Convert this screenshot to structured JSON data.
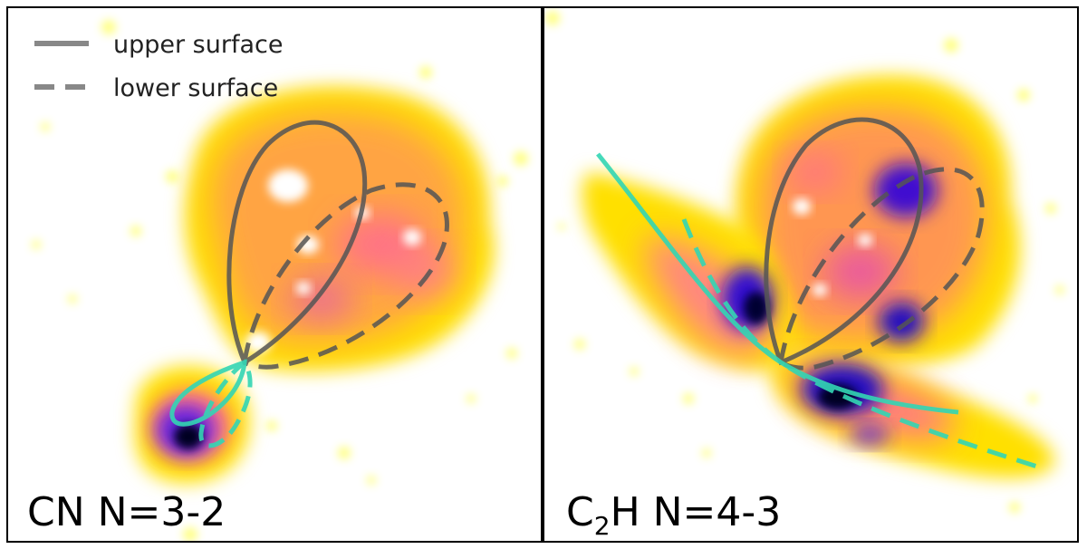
{
  "figure": {
    "legend": {
      "entries": [
        {
          "label": "upper surface",
          "style": "solid"
        },
        {
          "label": "lower surface",
          "style": "dashed"
        }
      ]
    },
    "panels": [
      {
        "id": "cn",
        "label_main": "CN N=3-2"
      },
      {
        "id": "c2h",
        "label_prefix": "C",
        "label_subscript": "2",
        "label_suffix": "H N=4-3"
      }
    ],
    "colors": {
      "model_lines": "#555555",
      "cyan_lines": "#33d6b4",
      "colormap": [
        "#ffffff",
        "#ffff40",
        "#ffd000",
        "#ff8060",
        "#e040c0",
        "#8020e0",
        "#1000c0",
        "#000010"
      ]
    }
  }
}
